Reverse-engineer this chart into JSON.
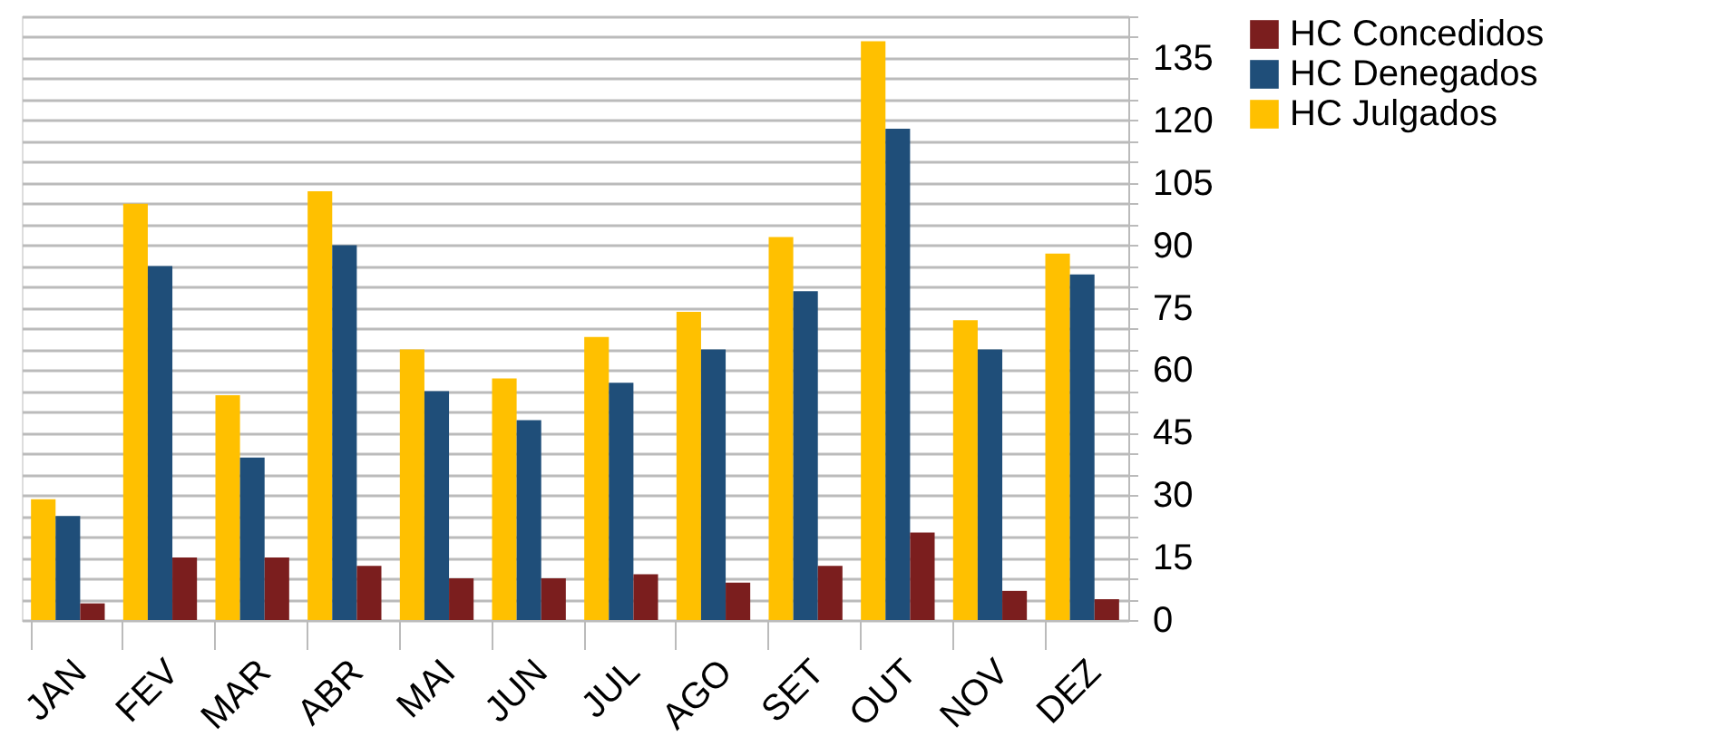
{
  "chart_data": {
    "type": "bar",
    "categories": [
      "JAN",
      "FEV",
      "MAR",
      "ABR",
      "MAI",
      "JUN",
      "JUL",
      "AGO",
      "SET",
      "OUT",
      "NOV",
      "DEZ"
    ],
    "series": [
      {
        "name": "HC Julgados",
        "color": "#ffc000",
        "values": [
          29,
          100,
          54,
          103,
          65,
          58,
          68,
          74,
          92,
          139,
          72,
          88
        ]
      },
      {
        "name": "HC Denegados",
        "color": "#1f4e79",
        "values": [
          25,
          85,
          39,
          90,
          55,
          48,
          57,
          65,
          79,
          118,
          65,
          83
        ]
      },
      {
        "name": "HC Concedidos",
        "color": "#7b1e1e",
        "values": [
          4,
          15,
          15,
          13,
          10,
          10,
          11,
          9,
          13,
          21,
          7,
          5
        ]
      }
    ],
    "ylim": [
      0,
      145
    ],
    "yticks": [
      0,
      {
        "value": 5,
        "label": null
      },
      {
        "value": 10,
        "label": null
      },
      15,
      {
        "value": 20,
        "label": null
      },
      {
        "value": 25,
        "label": null
      },
      30,
      {
        "value": 35,
        "label": null
      },
      {
        "value": 40,
        "label": null
      },
      45,
      {
        "value": 50,
        "label": null
      },
      {
        "value": 55,
        "label": null
      },
      60,
      {
        "value": 65,
        "label": null
      },
      {
        "value": 70,
        "label": null
      },
      75,
      {
        "value": 80,
        "label": null
      },
      {
        "value": 85,
        "label": null
      },
      90,
      {
        "value": 95,
        "label": null
      },
      {
        "value": 100,
        "label": null
      },
      105,
      {
        "value": 110,
        "label": null
      },
      {
        "value": 115,
        "label": null
      },
      120,
      {
        "value": 125,
        "label": null
      },
      {
        "value": 130,
        "label": null
      },
      135,
      {
        "value": 140,
        "label": null
      },
      {
        "value": 145,
        "label": null
      }
    ],
    "grid": "y",
    "legend": "right"
  }
}
